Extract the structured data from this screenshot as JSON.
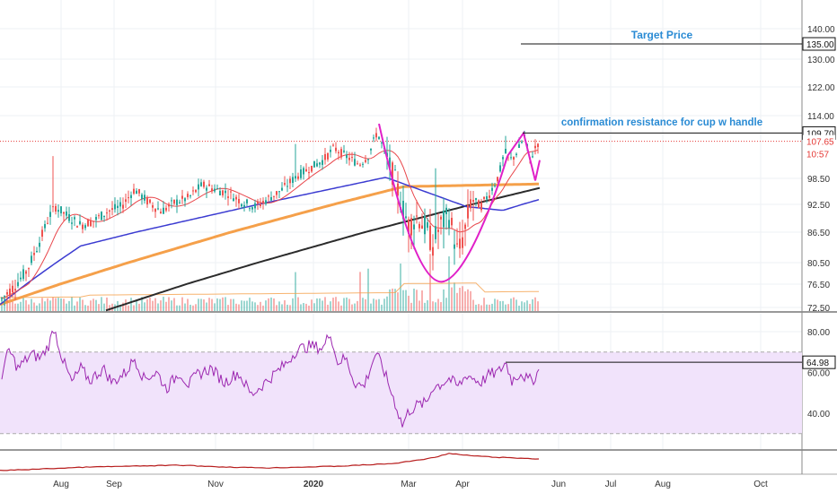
{
  "colors": {
    "up": "#26a69a",
    "down": "#ef5350",
    "ma_short": "#e8474c",
    "ma_mid": "#3b3bd1",
    "ma_long": "#f5a04a",
    "ma_200": "#2b2b2b",
    "cup": "#e020c8",
    "rsi_line": "#9c27b0",
    "rsi_band": "#f1e3fb",
    "annotation_text": "#2a8bd4",
    "price_red": "#e53935",
    "obv": "#b71c1c",
    "grid": "#eef0f4",
    "axis": "#555555"
  },
  "annotations": {
    "target_price": "Target Price",
    "confirmation": "confirmation resistance for cup w handle"
  },
  "chart_data": [
    {
      "type": "candlestick",
      "title": "",
      "y_tick_labels": [
        "140.00",
        "130.00",
        "122.00",
        "114.00",
        "98.50",
        "92.50",
        "86.50",
        "80.50",
        "76.50",
        "72.50"
      ],
      "y_ticks": [
        140.0,
        130.0,
        122.0,
        114.0,
        98.5,
        92.5,
        86.5,
        80.5,
        76.5,
        72.5
      ],
      "ylim": [
        71.8,
        145.0
      ],
      "x_tick_labels": [
        "Aug",
        "Sep",
        "Nov",
        "2020",
        "Mar",
        "Apr",
        "Jun",
        "Jul",
        "Aug",
        "Oct"
      ],
      "price_labels": [
        {
          "text": "135.00",
          "value": 135.0,
          "style": "black"
        },
        {
          "text": "109.70",
          "value": 109.7,
          "style": "black"
        },
        {
          "text": "107.65",
          "value": 107.65,
          "style": "red"
        },
        {
          "text": "10:57",
          "value": 107.65,
          "style": "red-sub"
        }
      ],
      "horizontal_levels": [
        {
          "name": "target",
          "value": 135.0
        },
        {
          "name": "resistance",
          "value": 109.7
        }
      ],
      "series_desc": [
        "price",
        "moving averages",
        "volume"
      ],
      "grid": true
    },
    {
      "type": "line",
      "title": "",
      "y_tick_labels": [
        "80.00",
        "60.00",
        "40.00"
      ],
      "y_ticks": [
        80,
        60,
        40
      ],
      "ylim": [
        23,
        86
      ],
      "band": [
        30,
        70
      ],
      "value_labels": [
        {
          "text": "64.98",
          "value": 64.98
        }
      ],
      "grid": true
    },
    {
      "type": "line",
      "title": "",
      "grid": false
    }
  ]
}
